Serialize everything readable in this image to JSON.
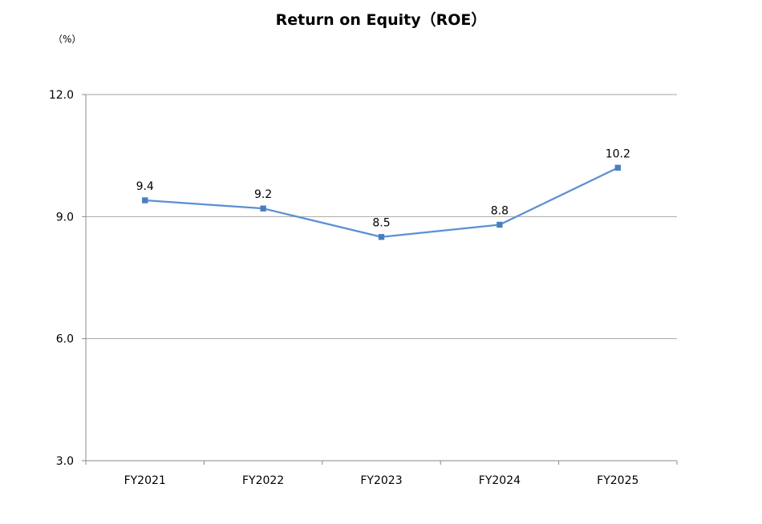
{
  "chart_data": {
    "type": "line",
    "title": "Return on Equity（ROE）",
    "unit_label": "（%）",
    "categories": [
      "FY2021",
      "FY2022",
      "FY2023",
      "FY2024",
      "FY2025"
    ],
    "series": [
      {
        "values": [
          9.4,
          9.2,
          8.5,
          8.8,
          10.2
        ]
      }
    ],
    "data_labels": [
      "9.4",
      "9.2",
      "8.5",
      "8.8",
      "10.2"
    ],
    "ylim": [
      3.0,
      12.0
    ],
    "yticks": [
      3.0,
      6.0,
      9.0,
      12.0
    ],
    "ytick_labels": [
      "3.0",
      "6.0",
      "9.0",
      "12.0"
    ],
    "grid": true,
    "line_color": "#5b8fd4",
    "marker": "square"
  }
}
